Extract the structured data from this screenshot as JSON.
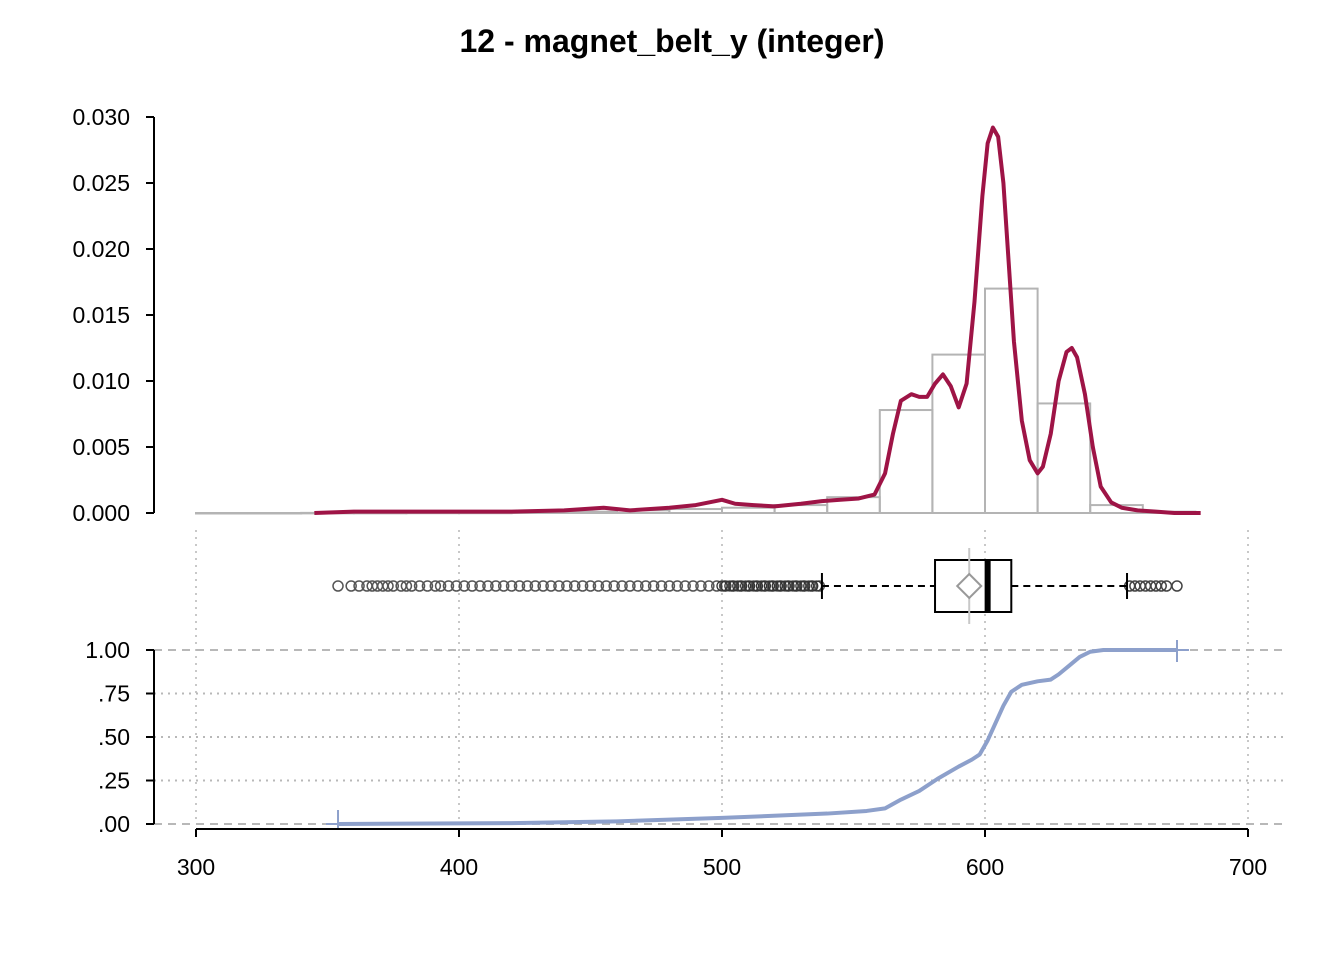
{
  "chart_data": [
    {
      "type": "histogram_density",
      "title": "12 - magnet_belt_y (integer)",
      "y_ticks": [
        "0.000",
        "0.005",
        "0.010",
        "0.015",
        "0.020",
        "0.025",
        "0.030"
      ],
      "y_tick_values": [
        0,
        0.005,
        0.01,
        0.015,
        0.02,
        0.025,
        0.03
      ],
      "ylim": [
        0,
        0.03
      ],
      "histogram": {
        "bin_edges": [
          300,
          320,
          340,
          360,
          380,
          400,
          420,
          440,
          460,
          480,
          500,
          520,
          540,
          560,
          580,
          600,
          620,
          640,
          660,
          680
        ],
        "density": [
          0,
          0,
          1e-05,
          1e-05,
          2e-05,
          2e-05,
          5e-05,
          0.0001,
          0.0002,
          0.0003,
          0.0004,
          0.0006,
          0.0012,
          0.0078,
          0.012,
          0.017,
          0.0083,
          0.0006,
          0.0001
        ]
      },
      "density_curve": {
        "x": [
          345,
          360,
          380,
          400,
          420,
          440,
          455,
          465,
          480,
          490,
          500,
          505,
          512,
          520,
          530,
          538,
          545,
          552,
          558,
          562,
          565,
          568,
          572,
          575,
          578,
          581,
          584,
          587,
          590,
          593,
          596,
          599,
          601,
          603,
          605,
          607,
          609,
          611,
          614,
          617,
          620,
          622,
          625,
          628,
          631,
          633,
          635,
          638,
          641,
          644,
          648,
          652,
          658,
          665,
          672,
          682
        ],
        "y": [
          0.0,
          0.0001,
          0.0001,
          0.0001,
          0.0001,
          0.0002,
          0.0004,
          0.0002,
          0.0004,
          0.0006,
          0.001,
          0.0007,
          0.0006,
          0.0005,
          0.0007,
          0.0009,
          0.001,
          0.0011,
          0.0014,
          0.003,
          0.006,
          0.0085,
          0.009,
          0.0088,
          0.0088,
          0.0098,
          0.0105,
          0.0096,
          0.008,
          0.0098,
          0.016,
          0.024,
          0.028,
          0.0292,
          0.0285,
          0.025,
          0.019,
          0.013,
          0.007,
          0.004,
          0.003,
          0.0035,
          0.006,
          0.01,
          0.0122,
          0.0125,
          0.0118,
          0.009,
          0.005,
          0.002,
          0.0008,
          0.0004,
          0.0002,
          0.0001,
          0.0,
          0.0
        ],
        "color": "#9e1446"
      }
    },
    {
      "type": "boxplot",
      "q1": 581,
      "median": 601,
      "q3": 610,
      "mean": 594,
      "whisker_low": 538,
      "whisker_high": 654,
      "outliers_low_range": [
        354,
        537
      ],
      "outliers_high_range": [
        655,
        673
      ],
      "outliers_low_sample": [
        354,
        359,
        362,
        365,
        367,
        369,
        371,
        373,
        375,
        378,
        380,
        382,
        385,
        388,
        391,
        393,
        396,
        399,
        402,
        405,
        408,
        411,
        414,
        417,
        420,
        423,
        426,
        429,
        432,
        435,
        438,
        441,
        444,
        447,
        450,
        453,
        456,
        459,
        462,
        465,
        468,
        471,
        474,
        477,
        480,
        483,
        486,
        489,
        492,
        495,
        498,
        501,
        504,
        507,
        510,
        513,
        516,
        519,
        522,
        525,
        528,
        531,
        534,
        537
      ],
      "outliers_high_sample": [
        655,
        657,
        659,
        661,
        663,
        665,
        667,
        669,
        673
      ]
    },
    {
      "type": "ecdf",
      "y_ticks": [
        "1.00",
        ".75",
        ".50",
        ".25",
        ".00"
      ],
      "y_tick_values": [
        1.0,
        0.75,
        0.5,
        0.25,
        0.0
      ],
      "ylim": [
        0,
        1
      ],
      "x_ticks": [
        "300",
        "400",
        "500",
        "600",
        "700"
      ],
      "x_tick_values": [
        300,
        400,
        500,
        600,
        700
      ],
      "xlim": [
        300,
        700
      ],
      "x": [
        354,
        420,
        460,
        500,
        540,
        555,
        562,
        568,
        575,
        582,
        590,
        595,
        598,
        601,
        604,
        607,
        610,
        614,
        620,
        625,
        628,
        632,
        636,
        640,
        645,
        655,
        673
      ],
      "y": [
        0.0,
        0.005,
        0.015,
        0.035,
        0.06,
        0.075,
        0.09,
        0.14,
        0.19,
        0.26,
        0.33,
        0.37,
        0.4,
        0.48,
        0.58,
        0.68,
        0.76,
        0.8,
        0.82,
        0.83,
        0.86,
        0.91,
        0.96,
        0.99,
        1.0,
        1.0,
        1.0
      ],
      "color": "#8da0cb"
    }
  ]
}
